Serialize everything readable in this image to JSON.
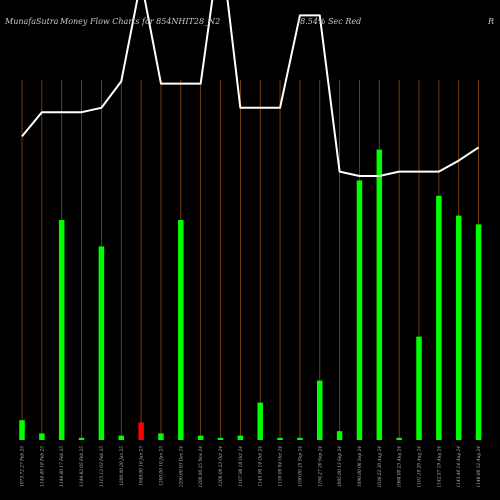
{
  "header": {
    "site": "MunafaSutra",
    "title": "Money Flow  Charts for 854NHIT28_N2",
    "subtitle": "(8.54% Sec Red",
    "edge": "R"
  },
  "colors": {
    "background": "#000000",
    "grid": "#8a4a12",
    "up": "#00ff00",
    "down": "#ff0000",
    "line": "#ffffff"
  },
  "chart_data": {
    "type": "bar",
    "title": "Money Flow  Charts for 854NHIT28_N2",
    "categories": [
      "1075.72 27 Feb 25",
      "1144.49 18 Feb 25",
      "1144.60 17 Feb 25",
      "1144.82 05 Feb 25",
      "1115.13 03 Feb 25",
      "1200.00 20 Jan 25",
      "1049.00 16 Jan 25",
      "1200.00 10 Jan 25",
      "1200.00 03 Dec 24",
      "1200.00 25 Nov 24",
      "1200.00 23 Oct 24",
      "1107.98 18 Oct 24",
      "1145.00 14 Oct 24",
      "1150.00 04 Oct 24",
      "1100.00 25 Sep 24",
      "1104.27 20 Sep 24",
      "1095.00 13 Sep 24",
      "1096.00 06 Sep 24",
      "1036.52 30 Aug 24",
      "1068.00 23 Aug 24",
      "1101.10 20 Aug 24",
      "1142.57 19 Aug 24",
      "1143.40 14 Aug 24",
      "1148.00 12 Aug 24"
    ],
    "values": [
      9,
      3,
      100,
      1,
      88,
      2,
      8,
      3,
      100,
      2,
      1,
      2,
      17,
      1,
      1,
      27,
      4,
      118,
      132,
      1,
      47,
      111,
      102,
      98
    ],
    "bar_colors": [
      "green",
      "green",
      "green",
      "green",
      "green",
      "green",
      "red",
      "green",
      "green",
      "green",
      "green",
      "green",
      "green",
      "green",
      "green",
      "green",
      "green",
      "green",
      "green",
      "green",
      "green",
      "green",
      "green",
      "green"
    ],
    "line": [
      138,
      149,
      149,
      149,
      151,
      163,
      209,
      162,
      162,
      162,
      227,
      151,
      151,
      151,
      193,
      193,
      122,
      120,
      120,
      122,
      122,
      122,
      127,
      133
    ],
    "ylim": [
      0,
      200
    ],
    "grid": true
  }
}
